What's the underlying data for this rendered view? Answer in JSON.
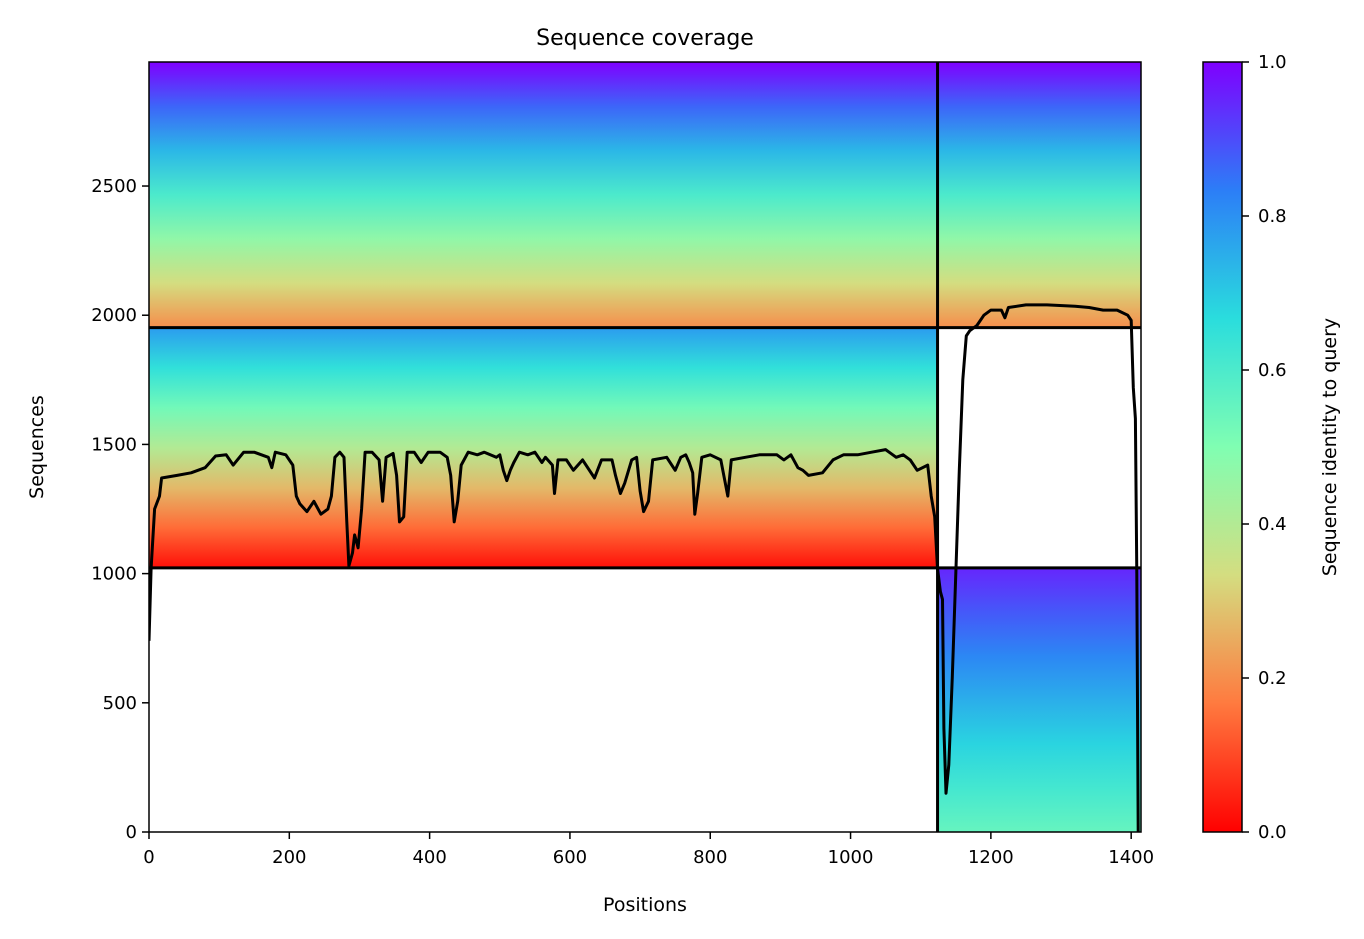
{
  "chart_data": {
    "type": "heatmap",
    "title": "Sequence coverage",
    "xlabel": "Positions",
    "ylabel": "Sequences",
    "xlim": [
      0,
      1414
    ],
    "ylim": [
      0,
      2980
    ],
    "x_ticks": [
      0,
      200,
      400,
      600,
      800,
      1000,
      1200,
      1400
    ],
    "y_ticks": [
      0,
      500,
      1000,
      1500,
      2000,
      2500
    ],
    "grid": false,
    "colormap": "rainbow_r",
    "colorbar": {
      "label": "Sequence identity to query",
      "range": [
        0,
        1
      ],
      "ticks": [
        "0.0",
        "0.2",
        "0.4",
        "0.6",
        "0.8",
        "1.0"
      ],
      "colors": [
        "#ff0000",
        "#ff7a3f",
        "#d4dd80",
        "#80feb2",
        "#2adddd",
        "#2c7ef7",
        "#7f00ff"
      ]
    },
    "chain_boundary_x": 1124,
    "block_boundaries_y": [
      1022,
      1952
    ],
    "blocks": [
      {
        "x_range": [
          0,
          1124
        ],
        "y_range": [
          1022,
          1952
        ],
        "identity_bottom": 0.02,
        "identity_top": 0.78
      },
      {
        "x_range": [
          0,
          1124
        ],
        "y_range": [
          1952,
          2980
        ],
        "identity_bottom": 0.2,
        "identity_top": 1.0
      },
      {
        "x_range": [
          1124,
          1414
        ],
        "y_range": [
          0,
          1022
        ],
        "identity_bottom": 0.55,
        "identity_top": 0.95
      },
      {
        "x_range": [
          1124,
          1414
        ],
        "y_range": [
          1952,
          2980
        ],
        "identity_bottom": 0.2,
        "identity_top": 1.0
      }
    ],
    "series": [
      {
        "label": "coverage",
        "color": "#000000",
        "points": [
          [
            0,
            740
          ],
          [
            3,
            1020
          ],
          [
            8,
            1250
          ],
          [
            15,
            1300
          ],
          [
            18,
            1370
          ],
          [
            40,
            1380
          ],
          [
            60,
            1390
          ],
          [
            80,
            1410
          ],
          [
            95,
            1455
          ],
          [
            110,
            1460
          ],
          [
            120,
            1420
          ],
          [
            135,
            1470
          ],
          [
            150,
            1470
          ],
          [
            170,
            1450
          ],
          [
            175,
            1410
          ],
          [
            180,
            1470
          ],
          [
            195,
            1460
          ],
          [
            205,
            1420
          ],
          [
            210,
            1300
          ],
          [
            215,
            1270
          ],
          [
            225,
            1240
          ],
          [
            235,
            1280
          ],
          [
            245,
            1230
          ],
          [
            255,
            1250
          ],
          [
            260,
            1300
          ],
          [
            265,
            1450
          ],
          [
            272,
            1470
          ],
          [
            278,
            1450
          ],
          [
            282,
            1200
          ],
          [
            285,
            1030
          ],
          [
            290,
            1080
          ],
          [
            293,
            1150
          ],
          [
            298,
            1100
          ],
          [
            303,
            1250
          ],
          [
            308,
            1470
          ],
          [
            318,
            1470
          ],
          [
            328,
            1440
          ],
          [
            333,
            1280
          ],
          [
            338,
            1450
          ],
          [
            348,
            1465
          ],
          [
            353,
            1380
          ],
          [
            357,
            1200
          ],
          [
            363,
            1220
          ],
          [
            368,
            1470
          ],
          [
            378,
            1470
          ],
          [
            388,
            1430
          ],
          [
            398,
            1470
          ],
          [
            415,
            1470
          ],
          [
            425,
            1450
          ],
          [
            430,
            1380
          ],
          [
            435,
            1200
          ],
          [
            440,
            1280
          ],
          [
            445,
            1420
          ],
          [
            455,
            1470
          ],
          [
            468,
            1460
          ],
          [
            478,
            1470
          ],
          [
            495,
            1450
          ],
          [
            500,
            1460
          ],
          [
            505,
            1400
          ],
          [
            510,
            1360
          ],
          [
            515,
            1400
          ],
          [
            520,
            1430
          ],
          [
            528,
            1470
          ],
          [
            540,
            1460
          ],
          [
            550,
            1470
          ],
          [
            560,
            1430
          ],
          [
            565,
            1450
          ],
          [
            575,
            1420
          ],
          [
            578,
            1310
          ],
          [
            583,
            1440
          ],
          [
            595,
            1440
          ],
          [
            605,
            1400
          ],
          [
            618,
            1440
          ],
          [
            635,
            1370
          ],
          [
            645,
            1440
          ],
          [
            660,
            1440
          ],
          [
            665,
            1380
          ],
          [
            672,
            1310
          ],
          [
            678,
            1350
          ],
          [
            688,
            1440
          ],
          [
            695,
            1450
          ],
          [
            700,
            1320
          ],
          [
            705,
            1240
          ],
          [
            712,
            1280
          ],
          [
            718,
            1440
          ],
          [
            738,
            1450
          ],
          [
            750,
            1400
          ],
          [
            758,
            1450
          ],
          [
            765,
            1460
          ],
          [
            770,
            1430
          ],
          [
            775,
            1390
          ],
          [
            778,
            1230
          ],
          [
            782,
            1310
          ],
          [
            788,
            1450
          ],
          [
            800,
            1460
          ],
          [
            815,
            1440
          ],
          [
            825,
            1300
          ],
          [
            830,
            1440
          ],
          [
            850,
            1450
          ],
          [
            870,
            1460
          ],
          [
            895,
            1460
          ],
          [
            905,
            1440
          ],
          [
            915,
            1460
          ],
          [
            925,
            1410
          ],
          [
            932,
            1400
          ],
          [
            940,
            1380
          ],
          [
            960,
            1390
          ],
          [
            975,
            1440
          ],
          [
            990,
            1460
          ],
          [
            1010,
            1460
          ],
          [
            1030,
            1470
          ],
          [
            1050,
            1480
          ],
          [
            1065,
            1450
          ],
          [
            1075,
            1460
          ],
          [
            1085,
            1440
          ],
          [
            1095,
            1400
          ],
          [
            1110,
            1420
          ],
          [
            1115,
            1300
          ],
          [
            1120,
            1220
          ],
          [
            1124,
            1020
          ],
          [
            1128,
            930
          ],
          [
            1131,
            900
          ],
          [
            1133,
            400
          ],
          [
            1136,
            150
          ],
          [
            1140,
            260
          ],
          [
            1145,
            600
          ],
          [
            1150,
            1000
          ],
          [
            1155,
            1400
          ],
          [
            1160,
            1750
          ],
          [
            1165,
            1920
          ],
          [
            1170,
            1940
          ],
          [
            1180,
            1960
          ],
          [
            1190,
            2000
          ],
          [
            1200,
            2020
          ],
          [
            1215,
            2020
          ],
          [
            1220,
            1990
          ],
          [
            1225,
            2030
          ],
          [
            1250,
            2040
          ],
          [
            1280,
            2040
          ],
          [
            1320,
            2035
          ],
          [
            1340,
            2030
          ],
          [
            1360,
            2020
          ],
          [
            1380,
            2020
          ],
          [
            1395,
            2000
          ],
          [
            1400,
            1980
          ],
          [
            1403,
            1720
          ],
          [
            1406,
            1600
          ],
          [
            1408,
            1000
          ],
          [
            1410,
            0
          ]
        ]
      }
    ]
  }
}
